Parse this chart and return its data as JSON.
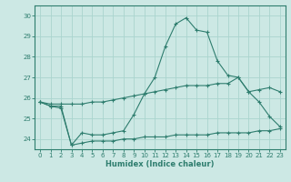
{
  "xlabel": "Humidex (Indice chaleur)",
  "x": [
    0,
    1,
    2,
    3,
    4,
    5,
    6,
    7,
    8,
    9,
    10,
    11,
    12,
    13,
    14,
    15,
    16,
    17,
    18,
    19,
    20,
    21,
    22,
    23
  ],
  "line1": [
    25.8,
    25.6,
    25.5,
    23.7,
    24.3,
    24.2,
    24.2,
    24.3,
    24.4,
    25.2,
    26.2,
    27.0,
    28.5,
    29.6,
    29.9,
    29.3,
    29.2,
    27.8,
    27.1,
    27.0,
    26.3,
    25.8,
    25.1,
    24.6
  ],
  "line2": [
    25.8,
    25.7,
    25.7,
    25.7,
    25.7,
    25.8,
    25.8,
    25.9,
    26.0,
    26.1,
    26.2,
    26.3,
    26.4,
    26.5,
    26.6,
    26.6,
    26.6,
    26.7,
    26.7,
    27.0,
    26.3,
    26.4,
    26.5,
    26.3
  ],
  "line3": [
    25.8,
    25.6,
    25.6,
    23.7,
    23.8,
    23.9,
    23.9,
    23.9,
    24.0,
    24.0,
    24.1,
    24.1,
    24.1,
    24.2,
    24.2,
    24.2,
    24.2,
    24.3,
    24.3,
    24.3,
    24.3,
    24.4,
    24.4,
    24.5
  ],
  "line_color": "#2e7d6e",
  "bg_color": "#cce8e4",
  "grid_color": "#aad4ce",
  "ylim": [
    23.5,
    30.5
  ],
  "yticks": [
    24,
    25,
    26,
    27,
    28,
    29,
    30
  ],
  "xticks": [
    0,
    1,
    2,
    3,
    4,
    5,
    6,
    7,
    8,
    9,
    10,
    11,
    12,
    13,
    14,
    15,
    16,
    17,
    18,
    19,
    20,
    21,
    22,
    23
  ]
}
